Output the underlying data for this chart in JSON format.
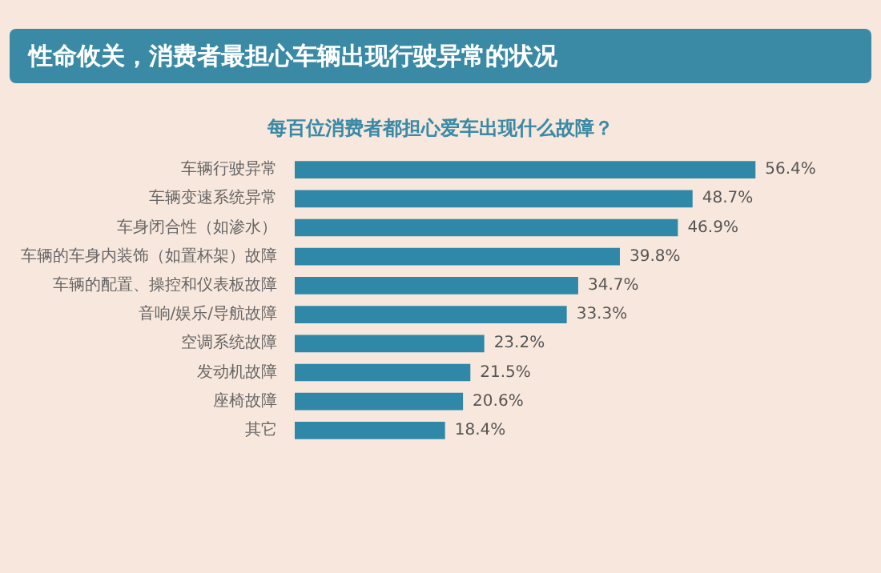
{
  "chart_data": {
    "type": "bar",
    "orientation": "horizontal",
    "title": "性命攸关，消费者最担心车辆出现行驶异常的状况",
    "subtitle": "每百位消费者都担心爱车出现什么故障？",
    "categories": [
      "车辆行驶异常",
      "车辆变速系统异常",
      "车身闭合性（如渗水）",
      "车辆的车身内装饰（如置杯架）故障",
      "车辆的配置、操控和仪表板故障",
      "音响/娱乐/导航故障",
      "空调系统故障",
      "发动机故障",
      "座椅故障",
      "其它"
    ],
    "values": [
      56.4,
      48.7,
      46.9,
      39.8,
      34.7,
      33.3,
      23.2,
      21.5,
      20.6,
      18.4
    ],
    "value_labels": [
      "56.4%",
      "48.7%",
      "46.9%",
      "39.8%",
      "34.7%",
      "33.3%",
      "23.2%",
      "21.5%",
      "20.6%",
      "18.4%"
    ],
    "color": "#2f88a8"
  }
}
